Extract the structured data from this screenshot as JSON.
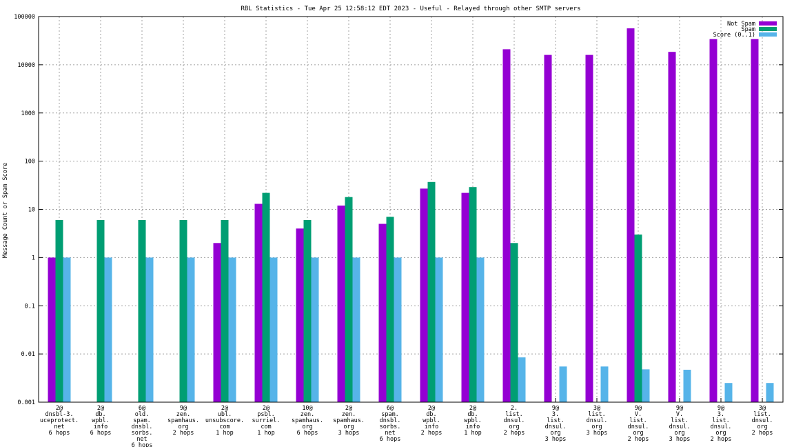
{
  "chart_data": {
    "type": "bar",
    "title": "RBL Statistics - Tue Apr 25 12:58:12 EDT 2023 - Useful - Relayed through other SMTP servers",
    "xlabel": "",
    "ylabel": "Message Count or Spam Score",
    "yscale": "log",
    "ylim": [
      0.001,
      100000
    ],
    "yticks": [
      "0.001",
      "0.01",
      "0.1",
      "1",
      "10",
      "100",
      "1000",
      "10000",
      "100000"
    ],
    "grid": true,
    "legend_position": "top-right",
    "categories": [
      [
        "2@",
        "dnsbl-3.",
        "uceprotect.",
        "net",
        "6 hops"
      ],
      [
        "2@",
        "db.",
        "wpbl.",
        "info",
        "6 hops"
      ],
      [
        "6@",
        "old.",
        "spam.",
        "dnsbl.",
        "sorbs.",
        "net",
        "6 hops"
      ],
      [
        "9@",
        "zen.",
        "spamhaus.",
        "org",
        "2 hops"
      ],
      [
        "2@",
        "ubl.",
        "unsubscore.",
        "com",
        "1 hop"
      ],
      [
        "2@",
        "psbl.",
        "surriel.",
        "com",
        "1 hop"
      ],
      [
        "10@",
        "zen.",
        "spamhaus.",
        "org",
        "6 hops"
      ],
      [
        "2@",
        "zen.",
        "spamhaus.",
        "org",
        "3 hops"
      ],
      [
        "6@",
        "spam.",
        "dnsbl.",
        "sorbs.",
        "net",
        "6 hops"
      ],
      [
        "2@",
        "db.",
        "wpbl.",
        "info",
        "2 hops"
      ],
      [
        "2@",
        "db.",
        "wpbl.",
        "info",
        "1 hop"
      ],
      [
        "2.",
        "list.",
        "dnsul.",
        "org",
        "2 hops"
      ],
      [
        "9@",
        "3.",
        "list.",
        "dnsul.",
        "org",
        "3 hops"
      ],
      [
        "3@",
        "list.",
        "dnsul.",
        "org",
        "3 hops"
      ],
      [
        "9@",
        "V.",
        "list.",
        "dnsul.",
        "org",
        "2 hops"
      ],
      [
        "9@",
        "V.",
        "list.",
        "dnsul.",
        "org",
        "3 hops"
      ],
      [
        "9@",
        "3.",
        "list.",
        "dnsul.",
        "org",
        "2 hops"
      ],
      [
        "3@",
        "list.",
        "dnsul.",
        "org",
        "2 hops"
      ]
    ],
    "series": [
      {
        "name": "Not Spam",
        "color": "#9400d3",
        "values": [
          1,
          null,
          null,
          null,
          2,
          13,
          4,
          12,
          5,
          27,
          22,
          21000,
          16000,
          16000,
          57000,
          18500,
          34000,
          34000
        ]
      },
      {
        "name": "Spam",
        "color": "#009e73",
        "values": [
          6,
          6,
          6,
          6,
          6,
          22,
          6,
          18,
          7,
          37,
          29,
          2,
          null,
          null,
          3,
          null,
          null,
          null
        ]
      },
      {
        "name": "Score (0..1)",
        "color": "#56b4e9",
        "values": [
          1,
          1,
          1,
          1,
          1,
          1,
          1,
          1,
          1,
          1,
          1,
          0.0085,
          0.0055,
          0.0055,
          0.0048,
          0.0047,
          0.0025,
          0.0025
        ]
      }
    ]
  }
}
